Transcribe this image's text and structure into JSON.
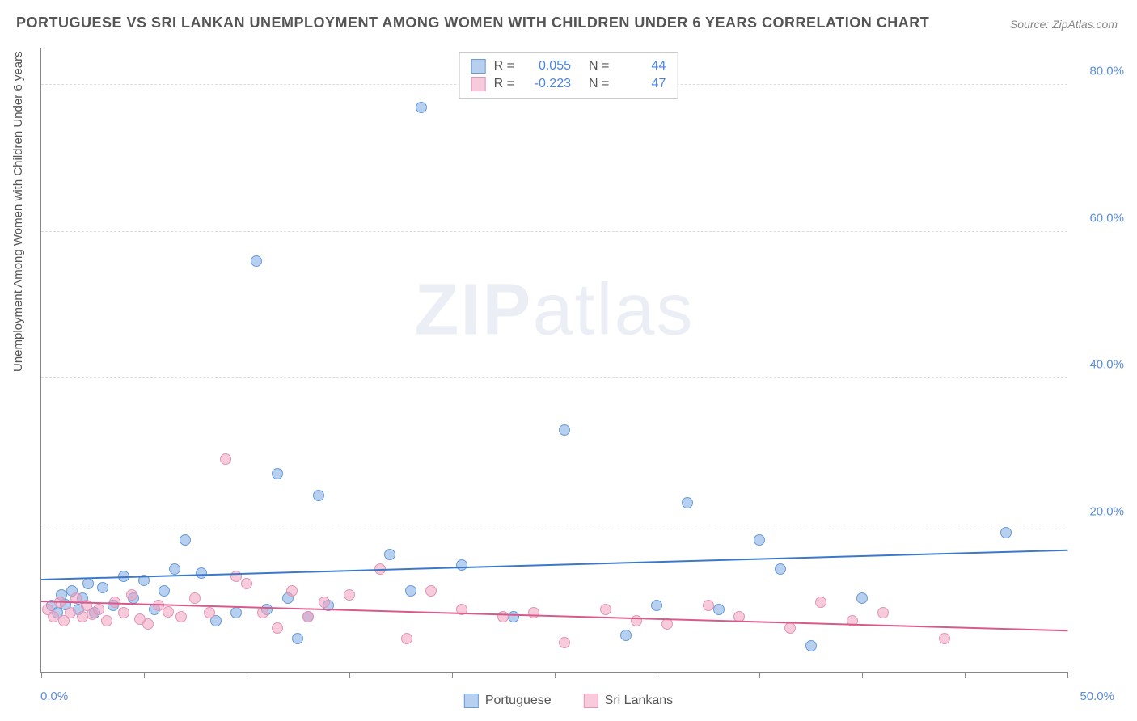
{
  "title": "PORTUGUESE VS SRI LANKAN UNEMPLOYMENT AMONG WOMEN WITH CHILDREN UNDER 6 YEARS CORRELATION CHART",
  "source": "Source: ZipAtlas.com",
  "ylabel": "Unemployment Among Women with Children Under 6 years",
  "watermark_bold": "ZIP",
  "watermark_rest": "atlas",
  "chart": {
    "type": "scatter",
    "xlim": [
      0,
      50
    ],
    "ylim": [
      0,
      85
    ],
    "xticks": [
      0,
      25,
      50
    ],
    "xtick_labels": [
      "0.0%",
      "",
      "50.0%"
    ],
    "yticks": [
      20,
      40,
      60,
      80
    ],
    "ytick_labels": [
      "20.0%",
      "40.0%",
      "60.0%",
      "80.0%"
    ],
    "background_color": "#ffffff",
    "grid_color": "#dddddd",
    "axis_color": "#888888",
    "tick_label_color": "#5b8fd6",
    "point_radius": 7,
    "series": [
      {
        "name": "Portuguese",
        "color_fill": "rgba(123,170,227,0.55)",
        "color_stroke": "#6a9bd8",
        "R": "0.055",
        "N": "44",
        "trend": {
          "x1": 0,
          "y1": 12.5,
          "x2": 50,
          "y2": 16.5,
          "color": "#3b78c9",
          "width": 2
        },
        "points": [
          [
            0.5,
            9
          ],
          [
            0.8,
            8
          ],
          [
            1.0,
            10.5
          ],
          [
            1.2,
            9.2
          ],
          [
            1.5,
            11
          ],
          [
            1.8,
            8.5
          ],
          [
            2.0,
            10
          ],
          [
            2.3,
            12
          ],
          [
            2.6,
            8
          ],
          [
            3.0,
            11.5
          ],
          [
            3.5,
            9
          ],
          [
            4.0,
            13
          ],
          [
            4.5,
            10
          ],
          [
            5.0,
            12.5
          ],
          [
            5.5,
            8.5
          ],
          [
            6.0,
            11
          ],
          [
            6.5,
            14
          ],
          [
            7.0,
            18
          ],
          [
            7.8,
            13.5
          ],
          [
            8.5,
            7
          ],
          [
            9.5,
            8
          ],
          [
            10.5,
            56
          ],
          [
            11.0,
            8.5
          ],
          [
            11.5,
            27
          ],
          [
            12.0,
            10
          ],
          [
            12.5,
            4.5
          ],
          [
            13.0,
            7.5
          ],
          [
            13.5,
            24
          ],
          [
            14.0,
            9
          ],
          [
            17.0,
            16
          ],
          [
            18.0,
            11
          ],
          [
            18.5,
            77
          ],
          [
            20.5,
            14.5
          ],
          [
            23.0,
            7.5
          ],
          [
            25.5,
            33
          ],
          [
            28.5,
            5
          ],
          [
            30.0,
            9
          ],
          [
            31.5,
            23
          ],
          [
            33.0,
            8.5
          ],
          [
            35.0,
            18
          ],
          [
            36.0,
            14
          ],
          [
            37.5,
            3.5
          ],
          [
            40.0,
            10
          ],
          [
            47.0,
            19
          ]
        ]
      },
      {
        "name": "Sri Lankans",
        "color_fill": "rgba(240,160,190,0.55)",
        "color_stroke": "#e295b5",
        "R": "-0.223",
        "N": "47",
        "trend": {
          "x1": 0,
          "y1": 9.5,
          "x2": 50,
          "y2": 5.5,
          "color": "#d85a8a",
          "width": 2
        },
        "points": [
          [
            0.3,
            8.5
          ],
          [
            0.6,
            7.5
          ],
          [
            0.9,
            9.5
          ],
          [
            1.1,
            7
          ],
          [
            1.4,
            8
          ],
          [
            1.7,
            10
          ],
          [
            2.0,
            7.5
          ],
          [
            2.2,
            9
          ],
          [
            2.5,
            7.8
          ],
          [
            2.8,
            8.5
          ],
          [
            3.2,
            7
          ],
          [
            3.6,
            9.5
          ],
          [
            4.0,
            8
          ],
          [
            4.4,
            10.5
          ],
          [
            4.8,
            7.2
          ],
          [
            5.2,
            6.5
          ],
          [
            5.7,
            9
          ],
          [
            6.2,
            8.2
          ],
          [
            6.8,
            7.5
          ],
          [
            7.5,
            10
          ],
          [
            8.2,
            8
          ],
          [
            9.0,
            29
          ],
          [
            9.5,
            13
          ],
          [
            10.0,
            12
          ],
          [
            10.8,
            8
          ],
          [
            11.5,
            6
          ],
          [
            12.2,
            11
          ],
          [
            13.0,
            7.5
          ],
          [
            13.8,
            9.5
          ],
          [
            15.0,
            10.5
          ],
          [
            16.5,
            14
          ],
          [
            17.8,
            4.5
          ],
          [
            19.0,
            11
          ],
          [
            20.5,
            8.5
          ],
          [
            22.5,
            7.5
          ],
          [
            24.0,
            8
          ],
          [
            25.5,
            4
          ],
          [
            27.5,
            8.5
          ],
          [
            29.0,
            7
          ],
          [
            30.5,
            6.5
          ],
          [
            32.5,
            9
          ],
          [
            34.0,
            7.5
          ],
          [
            36.5,
            6
          ],
          [
            38.0,
            9.5
          ],
          [
            39.5,
            7
          ],
          [
            41.0,
            8
          ],
          [
            44.0,
            4.5
          ]
        ]
      }
    ]
  },
  "legend_top": {
    "r_label": "R =",
    "n_label": "N ="
  },
  "legend_bottom": [
    {
      "label": "Portuguese",
      "fill": "rgba(123,170,227,0.55)",
      "stroke": "#6a9bd8"
    },
    {
      "label": "Sri Lankans",
      "fill": "rgba(240,160,190,0.55)",
      "stroke": "#e295b5"
    }
  ]
}
